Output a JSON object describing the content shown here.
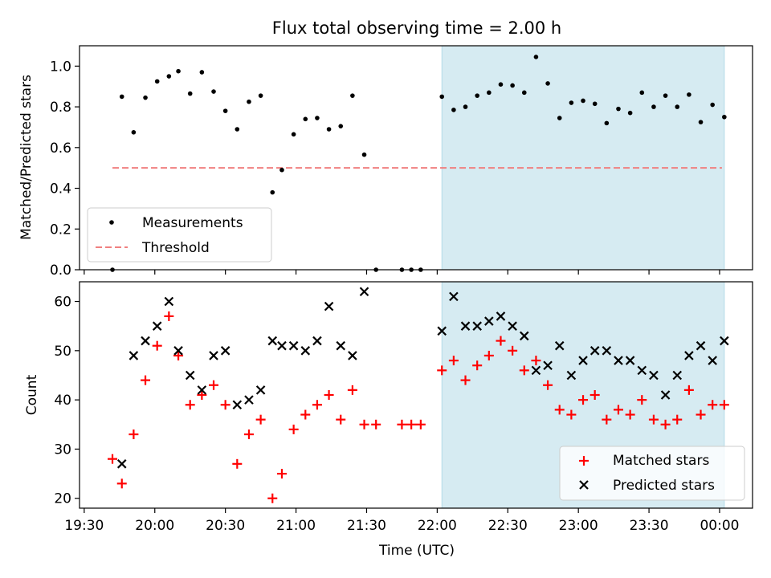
{
  "title": "Flux total observing time = 2.00 h",
  "colors": {
    "measurement": "#000000",
    "threshold": "#f08080",
    "highlight": "#add8e6",
    "matched": "#ff0000",
    "predicted": "#000000"
  },
  "chart_data": [
    {
      "type": "scatter",
      "ylabel": "Matched/Predicted stars",
      "ylim": [
        0,
        1.1
      ],
      "yticks": [
        "0.0",
        "0.2",
        "0.4",
        "0.6",
        "0.8",
        "1.0"
      ],
      "x_range_minutes": [
        1168,
        1454
      ],
      "highlight_range": [
        "22:02",
        "00:02"
      ],
      "legend": {
        "placement": "lower-left",
        "entries": [
          "Measurements",
          "Threshold"
        ]
      },
      "threshold": {
        "name": "Threshold",
        "value": 0.5,
        "x_start": "19:42",
        "x_end": "00:01"
      },
      "series": [
        {
          "name": "Measurements",
          "points": [
            [
              "19:42",
              0.0
            ],
            [
              "19:46",
              0.85
            ],
            [
              "19:51",
              0.675
            ],
            [
              "19:56",
              0.845
            ],
            [
              "20:01",
              0.925
            ],
            [
              "20:06",
              0.95
            ],
            [
              "20:10",
              0.975
            ],
            [
              "20:15",
              0.865
            ],
            [
              "20:20",
              0.97
            ],
            [
              "20:25",
              0.875
            ],
            [
              "20:30",
              0.78
            ],
            [
              "20:35",
              0.69
            ],
            [
              "20:40",
              0.825
            ],
            [
              "20:45",
              0.855
            ],
            [
              "20:50",
              0.38
            ],
            [
              "20:54",
              0.49
            ],
            [
              "20:59",
              0.665
            ],
            [
              "21:04",
              0.74
            ],
            [
              "21:09",
              0.745
            ],
            [
              "21:14",
              0.69
            ],
            [
              "21:19",
              0.705
            ],
            [
              "21:24",
              0.855
            ],
            [
              "21:29",
              0.565
            ],
            [
              "21:34",
              0.0
            ],
            [
              "21:45",
              0.0
            ],
            [
              "21:49",
              0.0
            ],
            [
              "21:53",
              0.0
            ],
            [
              "22:02",
              0.85
            ],
            [
              "22:07",
              0.785
            ],
            [
              "22:12",
              0.8
            ],
            [
              "22:17",
              0.855
            ],
            [
              "22:22",
              0.87
            ],
            [
              "22:27",
              0.91
            ],
            [
              "22:32",
              0.905
            ],
            [
              "22:37",
              0.87
            ],
            [
              "22:42",
              1.045
            ],
            [
              "22:47",
              0.915
            ],
            [
              "22:52",
              0.745
            ],
            [
              "22:57",
              0.82
            ],
            [
              "23:02",
              0.83
            ],
            [
              "23:07",
              0.815
            ],
            [
              "23:12",
              0.72
            ],
            [
              "23:17",
              0.79
            ],
            [
              "23:22",
              0.77
            ],
            [
              "23:27",
              0.87
            ],
            [
              "23:32",
              0.8
            ],
            [
              "23:37",
              0.855
            ],
            [
              "23:42",
              0.8
            ],
            [
              "23:47",
              0.86
            ],
            [
              "23:52",
              0.725
            ],
            [
              "23:57",
              0.81
            ],
            [
              "00:02",
              0.75
            ]
          ]
        }
      ]
    },
    {
      "type": "scatter",
      "xlabel": "Time (UTC)",
      "ylabel": "Count",
      "ylim": [
        18,
        64
      ],
      "yticks": [
        "20",
        "30",
        "40",
        "50",
        "60"
      ],
      "xticks": [
        "19:30",
        "20:00",
        "20:30",
        "21:00",
        "21:30",
        "22:00",
        "22:30",
        "23:00",
        "23:30",
        "00:00"
      ],
      "x_range_minutes": [
        1168,
        1454
      ],
      "highlight_range": [
        "22:02",
        "00:02"
      ],
      "legend": {
        "placement": "lower-right",
        "entries": [
          "Matched stars",
          "Predicted stars"
        ]
      },
      "series": [
        {
          "name": "Matched stars",
          "points": [
            [
              "19:42",
              28
            ],
            [
              "19:46",
              23
            ],
            [
              "19:51",
              33
            ],
            [
              "19:56",
              44
            ],
            [
              "20:01",
              51
            ],
            [
              "20:06",
              57
            ],
            [
              "20:10",
              49
            ],
            [
              "20:15",
              39
            ],
            [
              "20:20",
              41
            ],
            [
              "20:25",
              43
            ],
            [
              "20:30",
              39
            ],
            [
              "20:35",
              27
            ],
            [
              "20:40",
              33
            ],
            [
              "20:45",
              36
            ],
            [
              "20:50",
              20
            ],
            [
              "20:54",
              25
            ],
            [
              "20:59",
              34
            ],
            [
              "21:04",
              37
            ],
            [
              "21:09",
              39
            ],
            [
              "21:14",
              41
            ],
            [
              "21:19",
              36
            ],
            [
              "21:24",
              42
            ],
            [
              "21:29",
              35
            ],
            [
              "21:34",
              35
            ],
            [
              "21:45",
              35
            ],
            [
              "21:49",
              35
            ],
            [
              "21:53",
              35
            ],
            [
              "22:02",
              46
            ],
            [
              "22:07",
              48
            ],
            [
              "22:12",
              44
            ],
            [
              "22:17",
              47
            ],
            [
              "22:22",
              49
            ],
            [
              "22:27",
              52
            ],
            [
              "22:32",
              50
            ],
            [
              "22:37",
              46
            ],
            [
              "22:42",
              48
            ],
            [
              "22:47",
              43
            ],
            [
              "22:52",
              38
            ],
            [
              "22:57",
              37
            ],
            [
              "23:02",
              40
            ],
            [
              "23:07",
              41
            ],
            [
              "23:12",
              36
            ],
            [
              "23:17",
              38
            ],
            [
              "23:22",
              37
            ],
            [
              "23:27",
              40
            ],
            [
              "23:32",
              36
            ],
            [
              "23:37",
              35
            ],
            [
              "23:42",
              36
            ],
            [
              "23:47",
              42
            ],
            [
              "23:52",
              37
            ],
            [
              "23:57",
              39
            ],
            [
              "00:02",
              39
            ]
          ]
        },
        {
          "name": "Predicted stars",
          "points": [
            [
              "19:46",
              27
            ],
            [
              "19:51",
              49
            ],
            [
              "19:56",
              52
            ],
            [
              "20:01",
              55
            ],
            [
              "20:06",
              60
            ],
            [
              "20:10",
              50
            ],
            [
              "20:15",
              45
            ],
            [
              "20:20",
              42
            ],
            [
              "20:25",
              49
            ],
            [
              "20:30",
              50
            ],
            [
              "20:35",
              39
            ],
            [
              "20:40",
              40
            ],
            [
              "20:45",
              42
            ],
            [
              "20:50",
              52
            ],
            [
              "20:54",
              51
            ],
            [
              "20:59",
              51
            ],
            [
              "21:04",
              50
            ],
            [
              "21:09",
              52
            ],
            [
              "21:14",
              59
            ],
            [
              "21:19",
              51
            ],
            [
              "21:24",
              49
            ],
            [
              "21:29",
              62
            ],
            [
              "22:02",
              54
            ],
            [
              "22:07",
              61
            ],
            [
              "22:12",
              55
            ],
            [
              "22:17",
              55
            ],
            [
              "22:22",
              56
            ],
            [
              "22:27",
              57
            ],
            [
              "22:32",
              55
            ],
            [
              "22:37",
              53
            ],
            [
              "22:42",
              46
            ],
            [
              "22:47",
              47
            ],
            [
              "22:52",
              51
            ],
            [
              "22:57",
              45
            ],
            [
              "23:02",
              48
            ],
            [
              "23:07",
              50
            ],
            [
              "23:12",
              50
            ],
            [
              "23:17",
              48
            ],
            [
              "23:22",
              48
            ],
            [
              "23:27",
              46
            ],
            [
              "23:32",
              45
            ],
            [
              "23:37",
              41
            ],
            [
              "23:42",
              45
            ],
            [
              "23:47",
              49
            ],
            [
              "23:52",
              51
            ],
            [
              "23:57",
              48
            ],
            [
              "00:02",
              52
            ]
          ]
        }
      ]
    }
  ]
}
